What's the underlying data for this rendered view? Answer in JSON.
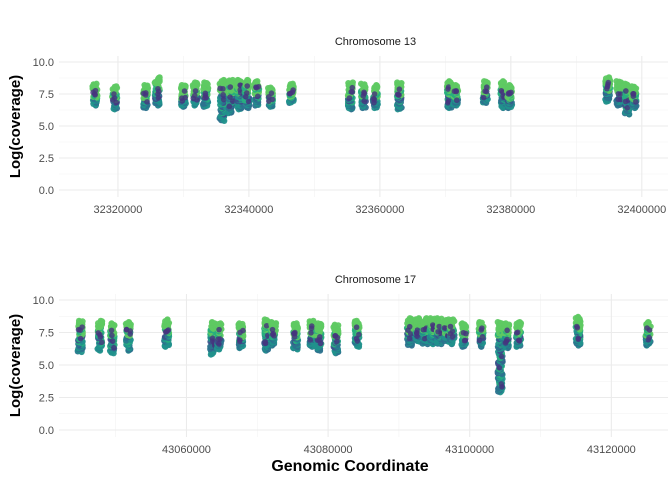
{
  "chart_data": [
    {
      "type": "scatter",
      "title": "Chromosome 13",
      "xlabel": "",
      "ylabel": "Log(coverage)",
      "xlim": [
        32311000,
        32404000
      ],
      "ylim": [
        0,
        10
      ],
      "xticks": [
        32320000,
        32340000,
        32360000,
        32380000,
        32400000
      ],
      "xtick_labels": [
        "32320000",
        "32340000",
        "32360000",
        "32380000",
        "32400000"
      ],
      "yticks": [
        0,
        2.5,
        5,
        7.5,
        10
      ],
      "ytick_labels": [
        "0.0",
        "2.5",
        "5.0",
        "7.5",
        "10.0"
      ],
      "grid": true,
      "legend": "none",
      "colors": [
        "#3b528b",
        "#2c728e",
        "#21918c",
        "#28ae80",
        "#5ec962",
        "#46337e"
      ],
      "clusters": [
        {
          "x": 32316500,
          "ymin": 6.6,
          "ymax": 8.3
        },
        {
          "x": 32319500,
          "ymin": 6.3,
          "ymax": 8.1
        },
        {
          "x": 32324200,
          "ymin": 6.4,
          "ymax": 8.2
        },
        {
          "x": 32326000,
          "ymin": 6.6,
          "ymax": 8.8
        },
        {
          "x": 32330000,
          "ymin": 6.5,
          "ymax": 8.2
        },
        {
          "x": 32331800,
          "ymin": 6.6,
          "ymax": 8.4
        },
        {
          "x": 32333400,
          "ymin": 6.5,
          "ymax": 8.4
        },
        {
          "x": 32335900,
          "ymin": 5.4,
          "ymax": 8.6
        },
        {
          "x": 32337300,
          "ymin": 6.0,
          "ymax": 8.6
        },
        {
          "x": 32338500,
          "ymin": 6.3,
          "ymax": 8.6
        },
        {
          "x": 32339700,
          "ymin": 6.4,
          "ymax": 8.6
        },
        {
          "x": 32341200,
          "ymin": 6.6,
          "ymax": 8.5
        },
        {
          "x": 32343300,
          "ymin": 6.5,
          "ymax": 8.0
        },
        {
          "x": 32346500,
          "ymin": 6.8,
          "ymax": 8.3
        },
        {
          "x": 32355500,
          "ymin": 6.3,
          "ymax": 8.4
        },
        {
          "x": 32357500,
          "ymin": 6.4,
          "ymax": 8.3
        },
        {
          "x": 32359300,
          "ymin": 6.4,
          "ymax": 8.2
        },
        {
          "x": 32363000,
          "ymin": 6.3,
          "ymax": 8.4
        },
        {
          "x": 32370600,
          "ymin": 6.4,
          "ymax": 8.5
        },
        {
          "x": 32371600,
          "ymin": 6.6,
          "ymax": 8.2
        },
        {
          "x": 32376100,
          "ymin": 6.8,
          "ymax": 8.5
        },
        {
          "x": 32378800,
          "ymin": 6.4,
          "ymax": 8.5
        },
        {
          "x": 32379800,
          "ymin": 6.4,
          "ymax": 8.2
        },
        {
          "x": 32394800,
          "ymin": 6.9,
          "ymax": 8.8
        },
        {
          "x": 32396500,
          "ymin": 6.6,
          "ymax": 8.5
        },
        {
          "x": 32397800,
          "ymin": 5.9,
          "ymax": 8.3
        },
        {
          "x": 32398800,
          "ymin": 6.4,
          "ymax": 8.1
        }
      ]
    },
    {
      "type": "scatter",
      "title": "Chromosome 17",
      "xlabel": "Genomic Coordinate",
      "ylabel": "Log(coverage)",
      "xlim": [
        43042000,
        43128000
      ],
      "ylim": [
        0,
        10
      ],
      "xticks": [
        43060000,
        43080000,
        43100000,
        43120000
      ],
      "xtick_labels": [
        "43060000",
        "43080000",
        "43100000",
        "43120000"
      ],
      "yticks": [
        0,
        2.5,
        5,
        7.5,
        10
      ],
      "ytick_labels": [
        "0.0",
        "2.5",
        "5.0",
        "7.5",
        "10.0"
      ],
      "grid": true,
      "legend": "none",
      "colors": [
        "#3b528b",
        "#2c728e",
        "#21918c",
        "#28ae80",
        "#5ec962",
        "#46337e"
      ],
      "clusters": [
        {
          "x": 43045000,
          "ymin": 6.0,
          "ymax": 8.4
        },
        {
          "x": 43047800,
          "ymin": 6.1,
          "ymax": 8.4
        },
        {
          "x": 43049500,
          "ymin": 5.9,
          "ymax": 8.2
        },
        {
          "x": 43051800,
          "ymin": 6.1,
          "ymax": 8.3
        },
        {
          "x": 43057200,
          "ymin": 6.4,
          "ymax": 8.5
        },
        {
          "x": 43063700,
          "ymin": 5.8,
          "ymax": 8.3
        },
        {
          "x": 43064600,
          "ymin": 6.2,
          "ymax": 8.2
        },
        {
          "x": 43067700,
          "ymin": 6.3,
          "ymax": 8.2
        },
        {
          "x": 43071300,
          "ymin": 6.1,
          "ymax": 8.5
        },
        {
          "x": 43072300,
          "ymin": 6.5,
          "ymax": 8.3
        },
        {
          "x": 43075400,
          "ymin": 6.2,
          "ymax": 8.2
        },
        {
          "x": 43077700,
          "ymin": 6.4,
          "ymax": 8.4
        },
        {
          "x": 43078700,
          "ymin": 6.1,
          "ymax": 8.2
        },
        {
          "x": 43081100,
          "ymin": 5.9,
          "ymax": 8.1
        },
        {
          "x": 43084100,
          "ymin": 6.4,
          "ymax": 8.4
        },
        {
          "x": 43091500,
          "ymin": 6.5,
          "ymax": 8.6
        },
        {
          "x": 43092700,
          "ymin": 6.8,
          "ymax": 8.6
        },
        {
          "x": 43093700,
          "ymin": 6.6,
          "ymax": 8.6
        },
        {
          "x": 43094700,
          "ymin": 6.6,
          "ymax": 8.6
        },
        {
          "x": 43095700,
          "ymin": 6.6,
          "ymax": 8.6
        },
        {
          "x": 43096700,
          "ymin": 6.8,
          "ymax": 8.5
        },
        {
          "x": 43097500,
          "ymin": 6.6,
          "ymax": 8.5
        },
        {
          "x": 43099200,
          "ymin": 6.4,
          "ymax": 8.2
        },
        {
          "x": 43101600,
          "ymin": 6.4,
          "ymax": 8.3
        },
        {
          "x": 43104300,
          "ymin": 2.9,
          "ymax": 8.3
        },
        {
          "x": 43105200,
          "ymin": 6.3,
          "ymax": 8.2
        },
        {
          "x": 43106900,
          "ymin": 6.4,
          "ymax": 8.3
        },
        {
          "x": 43115300,
          "ymin": 6.5,
          "ymax": 8.7
        },
        {
          "x": 43125200,
          "ymin": 6.5,
          "ymax": 8.3
        }
      ]
    }
  ]
}
